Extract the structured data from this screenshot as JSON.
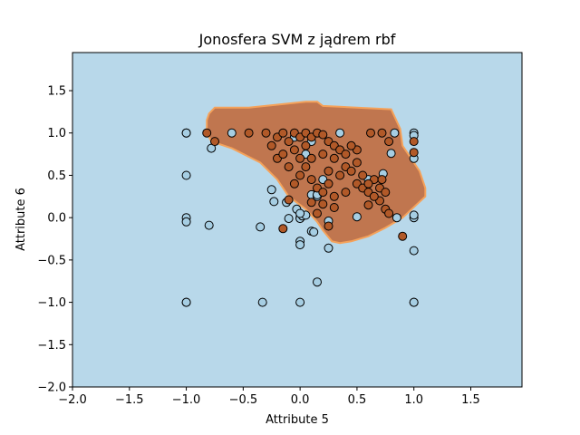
{
  "chart_data": {
    "type": "scatter",
    "title": "Jonosfera SVM z jądrem rbf",
    "xlabel": "Attribute 5",
    "ylabel": "Attribute 6",
    "xlim": [
      -2.0,
      1.95
    ],
    "ylim": [
      -2.0,
      1.95
    ],
    "xticks": [
      -2.0,
      -1.5,
      -1.0,
      -0.5,
      0.0,
      0.5,
      1.0,
      1.5
    ],
    "yticks": [
      -2.0,
      -1.5,
      -1.0,
      -0.5,
      0.0,
      0.5,
      1.0,
      1.5
    ],
    "xtick_labels": [
      "−2.0",
      "−1.5",
      "−1.0",
      "−0.5",
      "0.0",
      "0.5",
      "1.0",
      "1.5"
    ],
    "ytick_labels": [
      "−2.0",
      "−1.5",
      "−1.0",
      "−0.5",
      "0.0",
      "0.5",
      "1.0",
      "1.5"
    ],
    "grid": false,
    "colors": {
      "background_region": "#b8d8ea",
      "decision_region": "#c0764f",
      "decision_edge": "#f5a25a",
      "class_a_point": "#a6cee3",
      "class_b_point": "#b15928",
      "point_edge": "#000000"
    },
    "decision_region": [
      [
        -0.8,
        1.23
      ],
      [
        -0.75,
        1.3
      ],
      [
        -0.45,
        1.3
      ],
      [
        0.05,
        1.37
      ],
      [
        0.15,
        1.37
      ],
      [
        0.2,
        1.32
      ],
      [
        0.8,
        1.28
      ],
      [
        0.88,
        1.05
      ],
      [
        0.9,
        0.85
      ],
      [
        1.05,
        0.55
      ],
      [
        1.1,
        0.35
      ],
      [
        1.1,
        0.25
      ],
      [
        1.02,
        0.15
      ],
      [
        0.9,
        0.0
      ],
      [
        0.75,
        -0.12
      ],
      [
        0.6,
        -0.22
      ],
      [
        0.45,
        -0.28
      ],
      [
        0.35,
        -0.3
      ],
      [
        0.28,
        -0.28
      ],
      [
        0.2,
        -0.15
      ],
      [
        0.15,
        -0.05
      ],
      [
        0.05,
        0.1
      ],
      [
        -0.1,
        0.25
      ],
      [
        -0.2,
        0.45
      ],
      [
        -0.35,
        0.65
      ],
      [
        -0.6,
        0.82
      ],
      [
        -0.78,
        0.9
      ],
      [
        -0.82,
        1.0
      ],
      [
        -0.82,
        1.15
      ]
    ],
    "series": [
      {
        "class": "a",
        "points": [
          [
            -1.0,
            1.0
          ],
          [
            -1.0,
            1.0
          ],
          [
            -0.6,
            1.0
          ],
          [
            -0.78,
            0.82
          ],
          [
            -1.0,
            0.5
          ],
          [
            -1.0,
            0.0
          ],
          [
            -1.0,
            -0.05
          ],
          [
            -0.8,
            -0.09
          ],
          [
            -0.35,
            -0.11
          ],
          [
            -0.25,
            0.33
          ],
          [
            -0.23,
            0.19
          ],
          [
            -0.12,
            0.18
          ],
          [
            -0.1,
            -0.01
          ],
          [
            -0.03,
            0.1
          ],
          [
            0.0,
            0.0
          ],
          [
            0.0,
            -0.01
          ],
          [
            0.02,
            0.02
          ],
          [
            0.05,
            0.03
          ],
          [
            0.1,
            0.27
          ],
          [
            0.15,
            0.25
          ],
          [
            0.1,
            -0.16
          ],
          [
            0.12,
            -0.17
          ],
          [
            0.0,
            -0.28
          ],
          [
            0.0,
            -0.32
          ],
          [
            0.25,
            -0.04
          ],
          [
            0.25,
            -0.36
          ],
          [
            0.15,
            -0.76
          ],
          [
            -0.33,
            -1.0
          ],
          [
            0.0,
            -1.0
          ],
          [
            -1.0,
            -1.0
          ],
          [
            -1.0,
            -1.0
          ],
          [
            0.15,
            0.27
          ],
          [
            0.5,
            0.01
          ],
          [
            0.35,
            1.0
          ],
          [
            0.6,
            0.45
          ],
          [
            0.73,
            0.52
          ],
          [
            0.8,
            0.76
          ],
          [
            0.83,
            1.0
          ],
          [
            0.85,
            0.0
          ],
          [
            1.0,
            1.0
          ],
          [
            1.0,
            0.97
          ],
          [
            1.0,
            0.7
          ],
          [
            1.0,
            0.0
          ],
          [
            1.0,
            0.03
          ],
          [
            1.0,
            -0.39
          ],
          [
            1.0,
            -1.0
          ],
          [
            1.0,
            -1.0
          ],
          [
            0.1,
            0.9
          ],
          [
            0.2,
            0.45
          ],
          [
            0.0,
            0.05
          ],
          [
            -0.05,
            0.95
          ],
          [
            0.05,
            0.75
          ]
        ]
      },
      {
        "class": "b",
        "points": [
          [
            -0.82,
            1.0
          ],
          [
            -0.75,
            0.9
          ],
          [
            -0.45,
            1.0
          ],
          [
            -0.3,
            1.0
          ],
          [
            -0.2,
            0.95
          ],
          [
            -0.15,
            1.0
          ],
          [
            -0.1,
            0.9
          ],
          [
            -0.05,
            1.0
          ],
          [
            0.0,
            0.95
          ],
          [
            0.05,
            1.0
          ],
          [
            0.1,
            0.95
          ],
          [
            0.15,
            1.0
          ],
          [
            0.2,
            0.98
          ],
          [
            0.25,
            0.9
          ],
          [
            0.3,
            0.85
          ],
          [
            0.35,
            0.8
          ],
          [
            -0.2,
            0.7
          ],
          [
            -0.1,
            0.6
          ],
          [
            0.0,
            0.5
          ],
          [
            0.05,
            0.6
          ],
          [
            0.1,
            0.45
          ],
          [
            -0.05,
            0.4
          ],
          [
            0.15,
            0.35
          ],
          [
            0.2,
            0.3
          ],
          [
            0.3,
            0.25
          ],
          [
            0.35,
            0.5
          ],
          [
            0.4,
            0.6
          ],
          [
            0.45,
            0.55
          ],
          [
            0.5,
            0.4
          ],
          [
            0.55,
            0.35
          ],
          [
            0.6,
            0.3
          ],
          [
            0.65,
            0.45
          ],
          [
            0.7,
            0.35
          ],
          [
            0.75,
            0.3
          ],
          [
            0.75,
            0.1
          ],
          [
            0.78,
            0.05
          ],
          [
            0.7,
            0.2
          ],
          [
            0.65,
            0.25
          ],
          [
            0.6,
            0.4
          ],
          [
            0.55,
            0.5
          ],
          [
            0.5,
            0.65
          ],
          [
            0.5,
            0.8
          ],
          [
            0.62,
            1.0
          ],
          [
            0.72,
            1.0
          ],
          [
            0.78,
            0.9
          ],
          [
            1.0,
            0.9
          ],
          [
            1.0,
            0.77
          ],
          [
            0.9,
            -0.22
          ],
          [
            -0.15,
            -0.13
          ],
          [
            -0.1,
            0.21
          ],
          [
            0.25,
            -0.1
          ],
          [
            0.15,
            0.05
          ],
          [
            0.3,
            0.12
          ],
          [
            0.2,
            0.16
          ],
          [
            -0.05,
            0.8
          ],
          [
            0.05,
            0.85
          ],
          [
            0.2,
            0.75
          ],
          [
            0.3,
            0.7
          ],
          [
            0.4,
            0.75
          ],
          [
            0.45,
            0.85
          ],
          [
            -0.25,
            0.85
          ],
          [
            -0.15,
            0.75
          ],
          [
            0.0,
            0.7
          ],
          [
            0.1,
            0.7
          ],
          [
            0.25,
            0.55
          ],
          [
            0.4,
            0.3
          ],
          [
            0.1,
            0.18
          ],
          [
            0.25,
            0.4
          ],
          [
            0.6,
            0.15
          ],
          [
            0.72,
            0.45
          ]
        ]
      }
    ]
  }
}
